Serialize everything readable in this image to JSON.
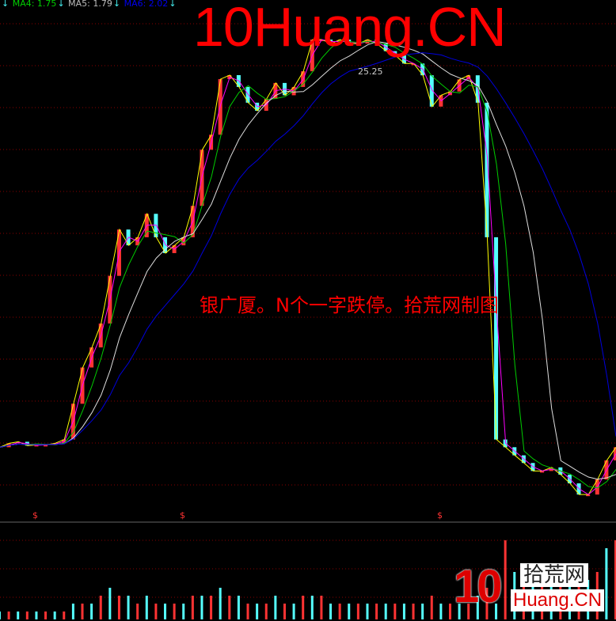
{
  "legend": [
    {
      "label": "MA4: 1.75",
      "color": "#00cc00"
    },
    {
      "label": "MA5: 1.79",
      "color": "#bbbbbb"
    },
    {
      "label": "MA6: 2.02",
      "color": "#0000ee"
    }
  ],
  "legend_arrow": "↓",
  "watermark": "10Huang.CN",
  "caption": "银广厦。N个一字跌停。拾荒网制图",
  "max_label": "25.25",
  "event_marker": "$",
  "logo": {
    "ten": "10",
    "cn": "拾荒网",
    "en": "Huang.CN"
  },
  "colors": {
    "up": "#ff3333",
    "down": "#55ffff",
    "price": "#ffff00",
    "ma_fast": "#ff00ff",
    "ma_mid": "#00cc00",
    "ma_slow": "#dddddd",
    "ma_long": "#0000dd",
    "grid": "#880000"
  },
  "chart_data": {
    "type": "line",
    "title": "",
    "scale": "log",
    "max_price": 25.25,
    "close": [
      2.07,
      2.12,
      2.14,
      2.09,
      2.1,
      2.1,
      2.12,
      2.17,
      2.7,
      3.37,
      3.81,
      4.41,
      5.9,
      7.83,
      7.11,
      7.47,
      8.62,
      7.47,
      6.78,
      7.11,
      7.47,
      9.05,
      12.75,
      13.98,
      19.64,
      20.12,
      18.72,
      17.0,
      16.18,
      17.4,
      19.18,
      17.79,
      18.72,
      20.6,
      25.0,
      25.0,
      24.4,
      25.0,
      24.4,
      24.4,
      25.0,
      24.4,
      23.3,
      22.7,
      21.6,
      21.6,
      20.1,
      16.6,
      17.8,
      18.2,
      19.6,
      20.1,
      17.0,
      7.47,
      2.17,
      2.07,
      1.97,
      1.88,
      1.79,
      1.79,
      1.83,
      1.75,
      1.66,
      1.55,
      1.55,
      1.7,
      1.91,
      2.07
    ],
    "ma_windows": [
      2,
      4,
      8,
      15
    ],
    "volume": [
      1,
      1,
      1,
      1,
      1,
      1,
      1,
      1,
      2,
      2,
      2,
      3,
      4,
      3,
      3,
      2,
      3,
      2,
      2,
      2,
      2,
      3,
      3,
      3,
      4,
      3,
      3,
      2,
      2,
      2,
      3,
      2,
      2,
      3,
      3,
      3,
      2,
      2,
      2,
      2,
      2,
      2,
      2,
      2,
      2,
      2,
      2,
      3,
      2,
      2,
      2,
      2,
      3,
      4,
      2,
      10,
      6,
      5,
      6,
      5,
      5,
      6,
      5,
      7,
      5,
      6,
      9,
      10
    ]
  }
}
